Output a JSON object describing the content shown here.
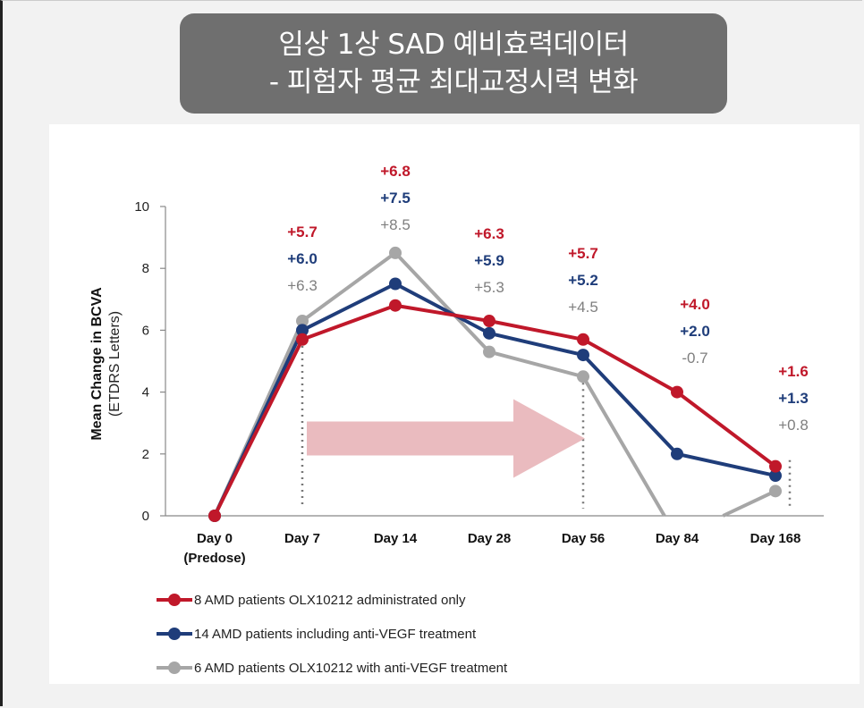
{
  "header": {
    "title_line1": "임상 1상 SAD 예비효력데이터",
    "title_line2": "- 피험자 평균 최대교정시력 변화"
  },
  "chart_data": {
    "type": "line",
    "ylabel": "Mean Change in BCVA",
    "ylabel_sub": "(ETDRS Letters)",
    "xlabel": "",
    "ylim": [
      0,
      10
    ],
    "yticks": [
      0,
      2,
      4,
      6,
      8,
      10
    ],
    "categories": [
      "Day 0\n(Predose)",
      "Day 7",
      "Day 14",
      "Day 28",
      "Day 56",
      "Day 84",
      "Day 168"
    ],
    "category_labels": [
      [
        "Day 0",
        "(Predose)"
      ],
      [
        "Day 7"
      ],
      [
        "Day 14"
      ],
      [
        "Day 28"
      ],
      [
        "Day 56"
      ],
      [
        "Day 84"
      ],
      [
        "Day 168"
      ]
    ],
    "series": [
      {
        "name": "8 AMD patients OLX10212 administrated only",
        "color": "#c0182a",
        "values": [
          0,
          5.7,
          6.8,
          6.3,
          5.7,
          4.0,
          1.6
        ],
        "labels": [
          "",
          "+5.7",
          "+6.8",
          "+6.3",
          "+5.7",
          "+4.0",
          "+1.6"
        ]
      },
      {
        "name": "14 AMD patients including anti-VEGF treatment",
        "color": "#1f3d7a",
        "values": [
          0,
          6.0,
          7.5,
          5.9,
          5.2,
          2.0,
          1.3
        ],
        "labels": [
          "",
          "+6.0",
          "+7.5",
          "+5.9",
          "+5.2",
          "+2.0",
          "+1.3"
        ]
      },
      {
        "name": "6 AMD patients OLX10212 with anti-VEGF treatment",
        "color": "#a6a6a6",
        "values": [
          0,
          6.3,
          8.5,
          5.3,
          4.5,
          -0.7,
          0.8
        ],
        "labels": [
          "",
          "+6.3",
          "+8.5",
          "+5.3",
          "+4.5",
          "-0.7",
          "+0.8"
        ]
      }
    ],
    "reference_lines_at": [
      "Day 7",
      "Day 56",
      "Day 168"
    ],
    "arrow": {
      "from": "Day 7",
      "to": "Day 56",
      "color": "#e8b4b8"
    },
    "grid": false,
    "legend_position": "bottom-left"
  }
}
